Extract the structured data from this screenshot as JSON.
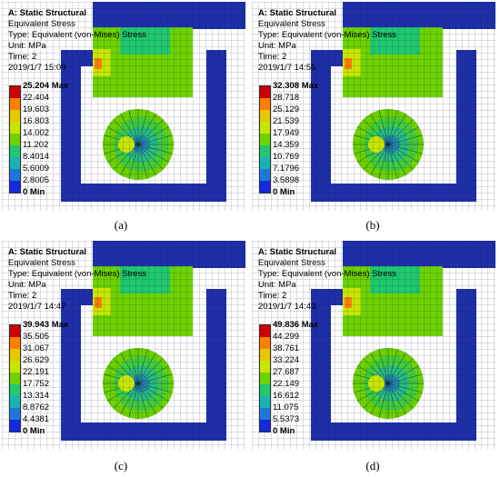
{
  "figure": {
    "panels": [
      {
        "caption": "(a)",
        "info": {
          "title": "A: Static Structural",
          "line1": "Equivalent Stress",
          "line2": "Type: Equivalent (von-Mises) Stress",
          "line3": "Unit: MPa",
          "line4": "Time: 2",
          "line5": "2019/1/7 15:09"
        },
        "legend": [
          "25.204 Max",
          "22.404",
          "19.603",
          "16.803",
          "14.002",
          "11.202",
          "8.4014",
          "5.6009",
          "2.8005",
          "0 Min"
        ]
      },
      {
        "caption": "(b)",
        "info": {
          "title": "A: Static Structural",
          "line1": "Equivalent Stress",
          "line2": "Type: Equivalent (von-Mises) Stress",
          "line3": "Unit: MPa",
          "line4": "Time: 2",
          "line5": "2019/1/7 14:55"
        },
        "legend": [
          "32.308 Max",
          "28.718",
          "25.129",
          "21.539",
          "17.949",
          "14.359",
          "10.769",
          "7.1796",
          "3.5898",
          "0 Min"
        ]
      },
      {
        "caption": "(c)",
        "info": {
          "title": "A: Static Structural",
          "line1": "Equivalent Stress",
          "line2": "Type: Equivalent (von-Mises) Stress",
          "line3": "Unit: MPa",
          "line4": "Time: 2",
          "line5": "2019/1/7 14:47"
        },
        "legend": [
          "39.943 Max",
          "35.505",
          "31.067",
          "26.629",
          "22.191",
          "17.752",
          "13.314",
          "8.8762",
          "4.4381",
          "0 Min"
        ]
      },
      {
        "caption": "(d)",
        "info": {
          "title": "A: Static Structural",
          "line1": "Equivalent Stress",
          "line2": "Type: Equivalent (von-Mises) Stress",
          "line3": "Unit: MPa",
          "line4": "Time: 2",
          "line5": "2019/1/7 14:43"
        },
        "legend": [
          "49.836 Max",
          "44.299",
          "38.761",
          "33.224",
          "27.687",
          "22.149",
          "16.612",
          "11.075",
          "5.5373",
          "0 Min"
        ]
      }
    ],
    "colors": {
      "scale": [
        "#cc0000",
        "#ff7f00",
        "#e6c800",
        "#c8e600",
        "#6cd200",
        "#20c86e",
        "#18b4b4",
        "#1e78dc",
        "#1428dc"
      ],
      "structure": "#1e2fa8",
      "mesh_line": "#0d1640",
      "background": "#ffffff"
    }
  }
}
